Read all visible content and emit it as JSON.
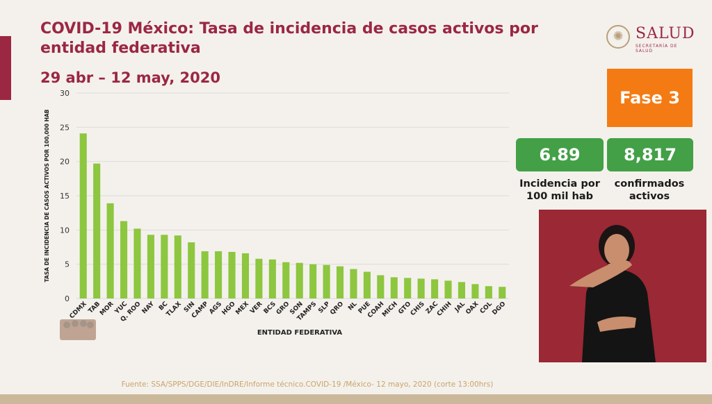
{
  "header": {
    "title": "COVID-19 México: Tasa de incidencia de casos activos por entidad federativa",
    "date_range": "29 abr – 12 may, 2020"
  },
  "logo": {
    "name": "SALUD",
    "subtitle": "SECRETARÍA DE SALUD"
  },
  "phase": {
    "label": "Fase 3",
    "color": "#f47b13"
  },
  "stats": [
    {
      "value": "6.89",
      "label": "Incidencia por 100 mil hab"
    },
    {
      "value": "8,817",
      "label": "confirmados activos"
    }
  ],
  "colors": {
    "bar": "#8dc63f",
    "accent": "#9b2743",
    "stat_box": "#43a047"
  },
  "source": "Fuente: SSA/SPPS/DGE/DIE/InDRE/Informe técnico.COVID-19 /México- 12 mayo, 2020 (corte 13:00hrs)",
  "chart_data": {
    "type": "bar",
    "title": "",
    "xlabel": "ENTIDAD FEDERATIVA",
    "ylabel": "TASA DE INCIDENCIA DE CASOS ACTIVOS POR 100,000 HAB",
    "ylim": [
      0,
      30
    ],
    "yticks": [
      0,
      5,
      10,
      15,
      20,
      25,
      30
    ],
    "grid": true,
    "categories": [
      "CDMX",
      "TAB",
      "MOR",
      "YUC",
      "Q. ROO",
      "NAY",
      "BC",
      "TLAX",
      "SIN",
      "CAMP",
      "AGS",
      "HGO",
      "MEX",
      "VER",
      "BCS",
      "GRO",
      "SON",
      "TAMPS",
      "SLP",
      "QRO",
      "NL",
      "PUE",
      "COAH",
      "MICH",
      "GTO",
      "CHIS",
      "ZAC",
      "CHIH",
      "JAL",
      "OAX",
      "COL",
      "DGO"
    ],
    "values": [
      24.1,
      19.7,
      13.9,
      11.3,
      10.2,
      9.3,
      9.3,
      9.2,
      8.2,
      6.9,
      6.9,
      6.8,
      6.6,
      5.8,
      5.7,
      5.3,
      5.2,
      5.0,
      4.9,
      4.7,
      4.3,
      3.9,
      3.4,
      3.1,
      3.0,
      2.9,
      2.8,
      2.6,
      2.4,
      2.1,
      1.8,
      1.7
    ]
  }
}
